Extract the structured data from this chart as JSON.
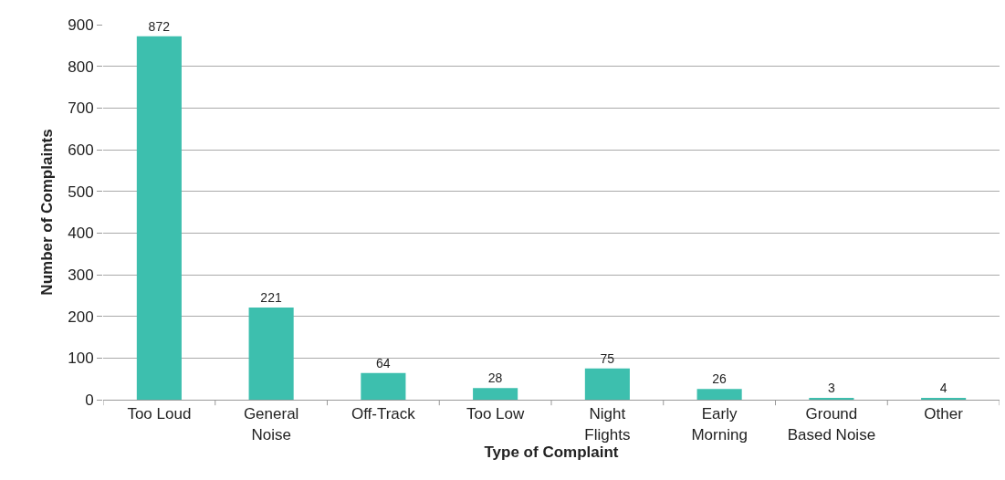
{
  "chart_data": {
    "type": "bar",
    "xlabel": "Type of Complaint",
    "ylabel": "Number of Complaints",
    "categories": [
      "Too Loud",
      "General\nNoise",
      "Off-Track",
      "Too Low",
      "Night\nFlights",
      "Early\nMorning",
      "Ground\nBased Noise",
      "Other"
    ],
    "values": [
      872,
      221,
      64,
      28,
      75,
      26,
      3,
      4
    ],
    "color": "#3dbfae",
    "ylim": [
      0,
      900
    ],
    "yticks": [
      0,
      100,
      200,
      300,
      400,
      500,
      600,
      700,
      800,
      900
    ],
    "grid": "y",
    "data_labels": true
  }
}
